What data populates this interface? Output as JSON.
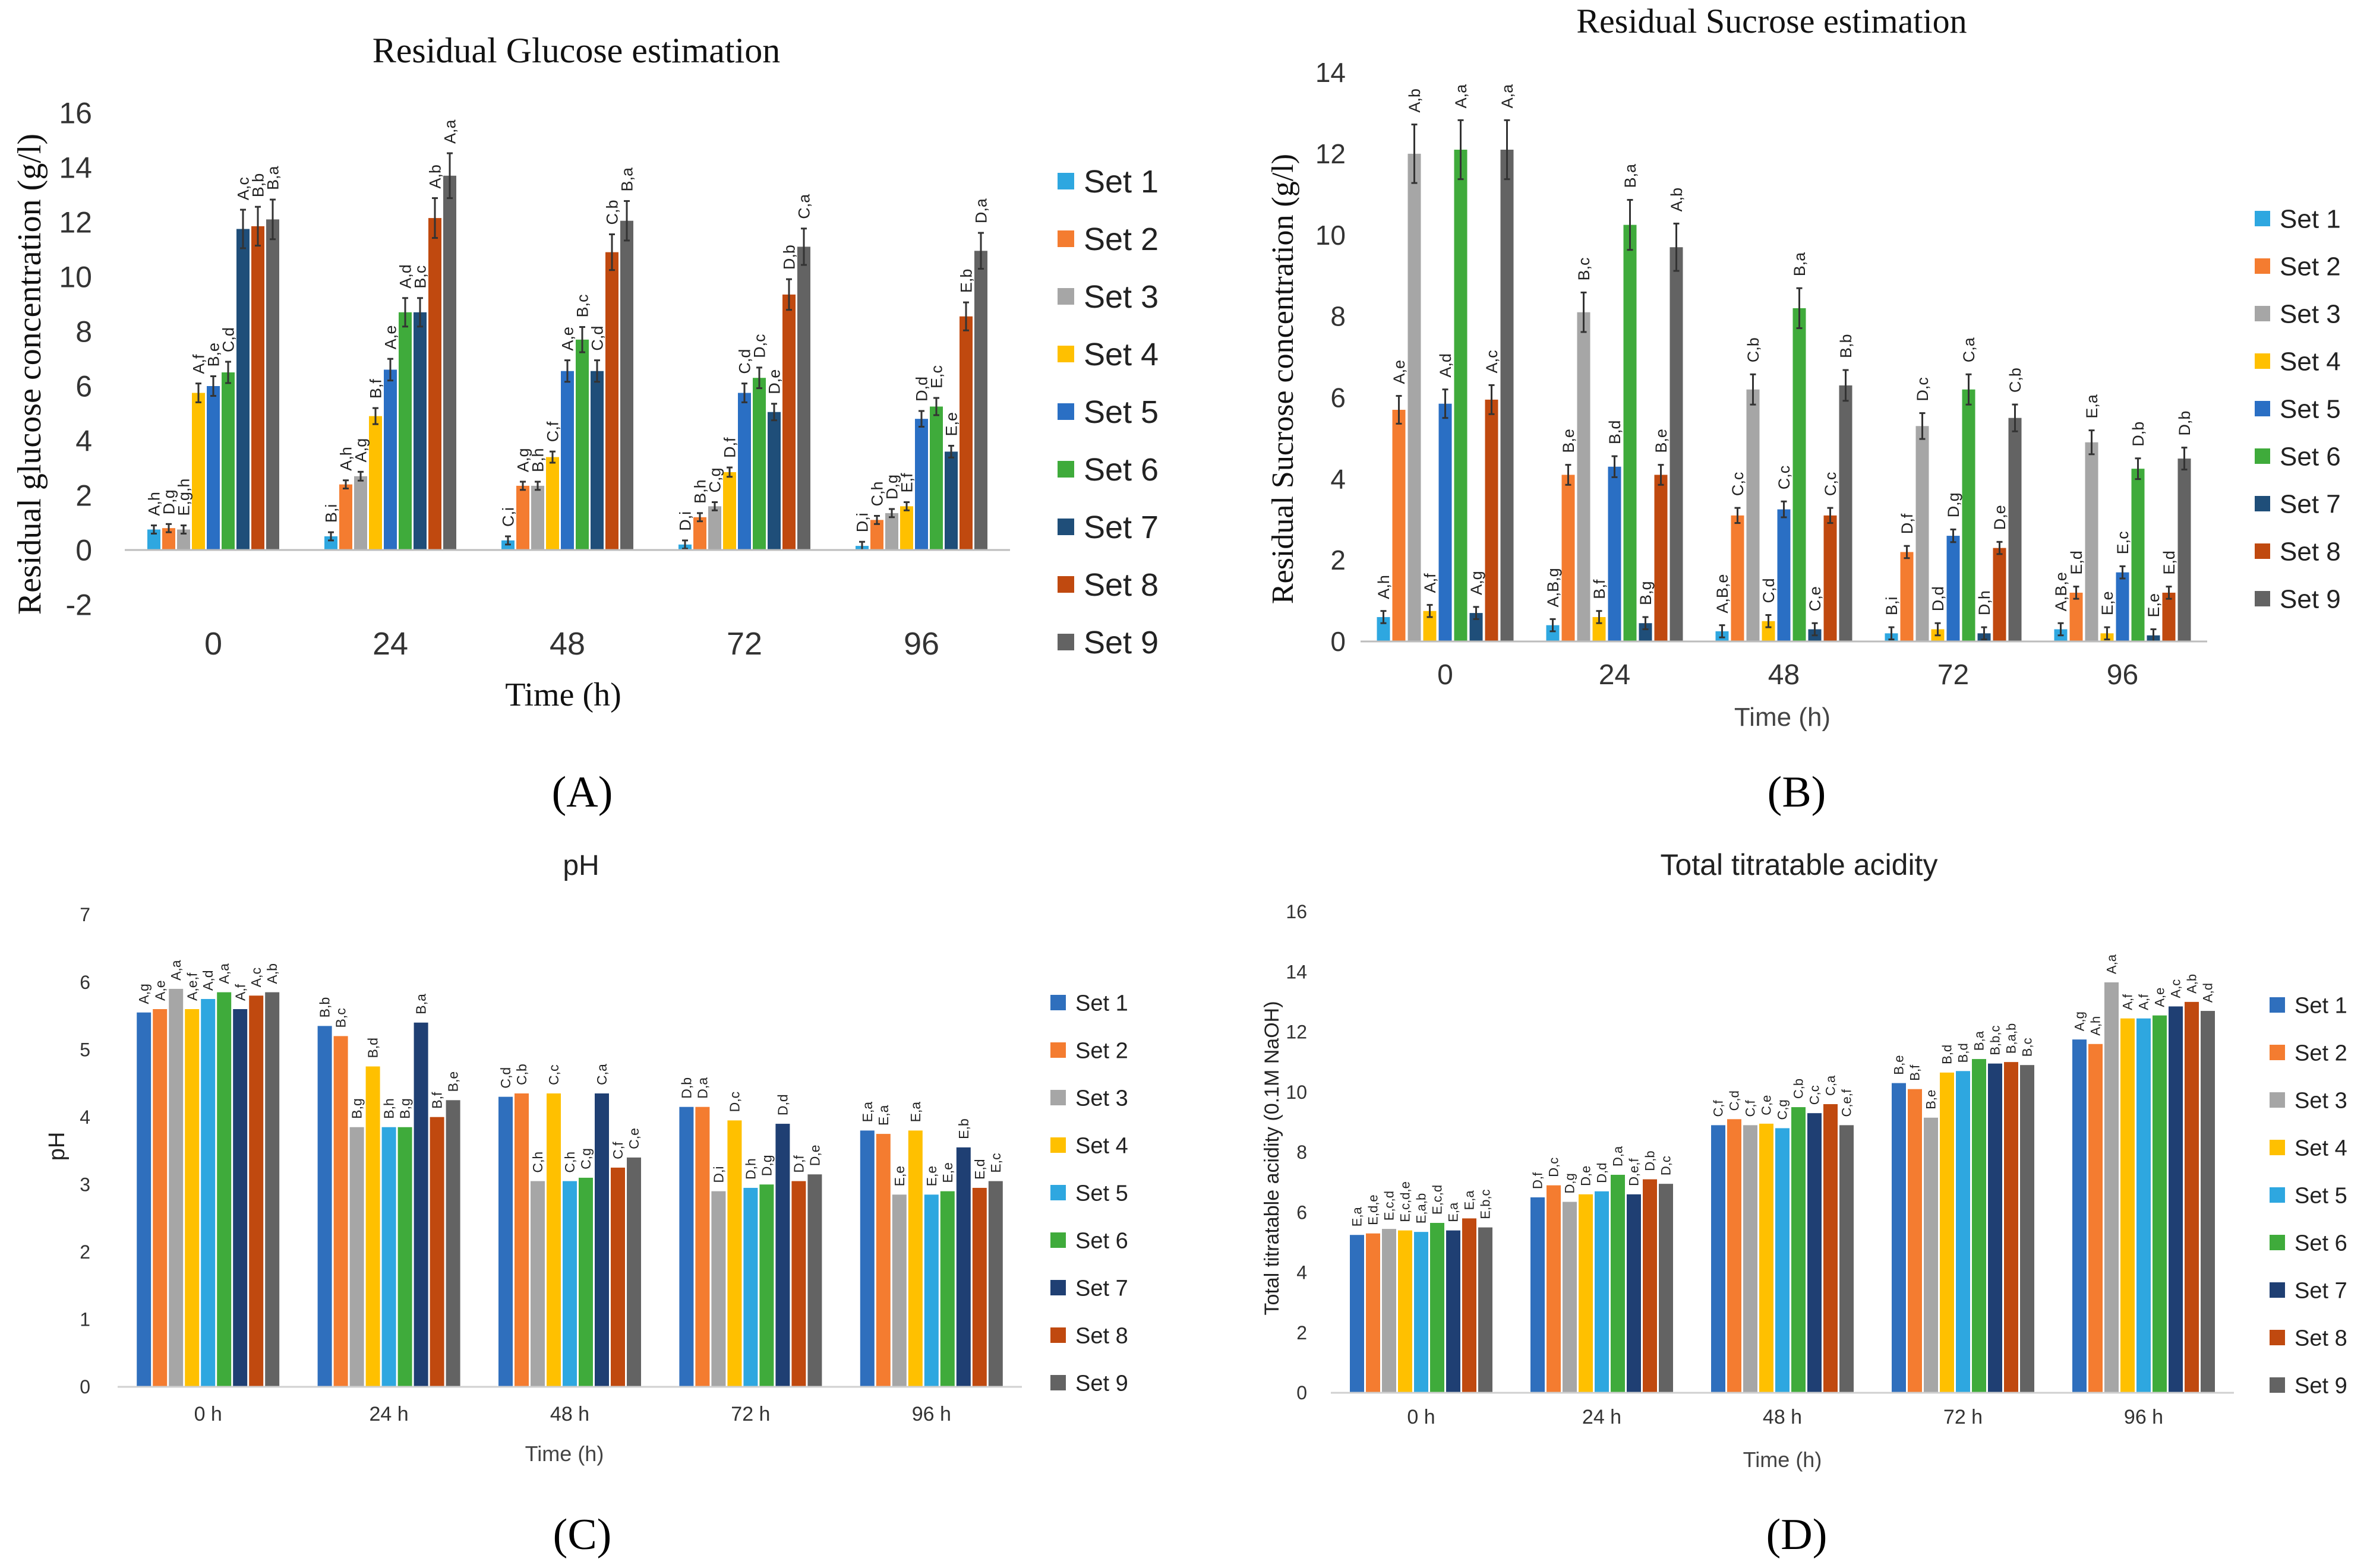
{
  "legend_sets": [
    "Set 1",
    "Set 2",
    "Set 3",
    "Set 4",
    "Set 5",
    "Set 6",
    "Set 7",
    "Set 8",
    "Set 9"
  ],
  "palettes": {
    "AB": [
      "#2ea7e0",
      "#f47c30",
      "#a6a6a6",
      "#ffc000",
      "#2a6fc4",
      "#3fab3b",
      "#1f4e79",
      "#c0490f",
      "#636363"
    ],
    "CD": [
      "#2f6fbd",
      "#f47c30",
      "#a6a6a6",
      "#ffc000",
      "#2ea7e0",
      "#3fab3b",
      "#1f3f73",
      "#c0490f",
      "#636363"
    ]
  },
  "chart_data": [
    {
      "id": "A",
      "panel_label": "(A)",
      "type": "bar",
      "title": "Residual Glucose estimation",
      "xlabel": "Time (h)",
      "ylabel": "Residual glucose concentration (g/l)",
      "categories": [
        "0",
        "24",
        "48",
        "72",
        "96"
      ],
      "ylim": [
        -2,
        16
      ],
      "yticks": [
        "-2",
        "0",
        "2",
        "4",
        "6",
        "8",
        "10",
        "12",
        "14",
        "16"
      ],
      "legend_position": "right",
      "series": [
        {
          "name": "Set 1",
          "values": [
            0.75,
            0.5,
            0.35,
            0.2,
            0.15
          ],
          "labels": [
            "A,h",
            "B,i",
            "C,i",
            "D,i",
            "D,i"
          ]
        },
        {
          "name": "Set 2",
          "values": [
            0.8,
            2.4,
            2.35,
            1.2,
            1.1
          ],
          "labels": [
            "D,g",
            "A,h",
            "A,g",
            "B,h",
            "C,h"
          ]
        },
        {
          "name": "Set 3",
          "values": [
            0.75,
            2.7,
            2.35,
            1.6,
            1.35
          ],
          "labels": [
            "E,g,h",
            "A,g",
            "B,h",
            "C,g",
            "D,g"
          ]
        },
        {
          "name": "Set 4",
          "values": [
            5.75,
            4.9,
            3.4,
            2.85,
            1.6
          ],
          "labels": [
            "A,f",
            "B,f",
            "C,f",
            "D,f",
            "E,f"
          ]
        },
        {
          "name": "Set 5",
          "values": [
            6.0,
            6.6,
            6.55,
            5.75,
            4.8
          ],
          "labels": [
            "B,e",
            "A,e",
            "A,e",
            "C,d",
            "D,d"
          ]
        },
        {
          "name": "Set 6",
          "values": [
            6.5,
            8.7,
            7.7,
            6.3,
            5.25
          ],
          "labels": [
            "C,d",
            "A,d",
            "B,c",
            "D,c",
            "E,c"
          ]
        },
        {
          "name": "Set 7",
          "values": [
            11.75,
            8.7,
            6.55,
            5.05,
            3.6
          ],
          "labels": [
            "A,c",
            "B,c",
            "C,d",
            "D,e",
            "E,e"
          ]
        },
        {
          "name": "Set 8",
          "values": [
            11.85,
            12.15,
            10.9,
            9.35,
            8.55
          ],
          "labels": [
            "B,b",
            "A,b",
            "C,b",
            "D,b",
            "E,b"
          ]
        },
        {
          "name": "Set 9",
          "values": [
            12.1,
            13.7,
            12.05,
            11.1,
            10.95
          ],
          "labels": [
            "B,a",
            "A,a",
            "B,a",
            "C,a",
            "D,a"
          ]
        }
      ]
    },
    {
      "id": "B",
      "panel_label": "(B)",
      "type": "bar",
      "title": "Residual Sucrose estimation",
      "xlabel": "Time (h)",
      "ylabel": "Residual Sucrose concentration (g/l)",
      "categories": [
        "0",
        "24",
        "48",
        "72",
        "96"
      ],
      "ylim": [
        0,
        14
      ],
      "yticks": [
        "0",
        "2",
        "4",
        "6",
        "8",
        "10",
        "12",
        "14"
      ],
      "legend_position": "right",
      "series": [
        {
          "name": "Set 1",
          "values": [
            0.6,
            0.4,
            0.25,
            0.2,
            0.3
          ],
          "labels": [
            "A,h",
            "A,B,g",
            "A,B,e",
            "B,i",
            "A,B,e"
          ]
        },
        {
          "name": "Set 2",
          "values": [
            5.7,
            4.1,
            3.1,
            2.2,
            1.2
          ],
          "labels": [
            "A,e",
            "B,e",
            "C,c",
            "D,f",
            "E,d"
          ]
        },
        {
          "name": "Set 3",
          "values": [
            12.0,
            8.1,
            6.2,
            5.3,
            4.9
          ],
          "labels": [
            "A,b",
            "B,c",
            "C,b",
            "D,c",
            "E,a"
          ]
        },
        {
          "name": "Set 4",
          "values": [
            0.75,
            0.6,
            0.5,
            0.3,
            0.2
          ],
          "labels": [
            "A,f",
            "B,f",
            "C,d",
            "D,d",
            "E,e"
          ]
        },
        {
          "name": "Set 5",
          "values": [
            5.85,
            4.3,
            3.25,
            2.6,
            1.7
          ],
          "labels": [
            "A,d",
            "B,d",
            "C,c",
            "D,g",
            "E,c"
          ]
        },
        {
          "name": "Set 6",
          "values": [
            12.1,
            10.25,
            8.2,
            6.2,
            4.25
          ],
          "labels": [
            "A,a",
            "B,a",
            "B,a",
            "C,a",
            "D,b"
          ]
        },
        {
          "name": "Set 7",
          "values": [
            0.7,
            0.45,
            0.3,
            0.2,
            0.15
          ],
          "labels": [
            "A,g",
            "B,g",
            "C,e",
            "D,h",
            "E,e"
          ]
        },
        {
          "name": "Set 8",
          "values": [
            5.95,
            4.1,
            3.1,
            2.3,
            1.2
          ],
          "labels": [
            "A,c",
            "B,e",
            "C,c",
            "D,e",
            "E,d"
          ]
        },
        {
          "name": "Set 9",
          "values": [
            12.1,
            9.7,
            6.3,
            5.5,
            4.5
          ],
          "labels": [
            "A,a",
            "A,b",
            "B,b",
            "C,b",
            "D,b"
          ]
        }
      ]
    },
    {
      "id": "C",
      "panel_label": "(C)",
      "type": "bar",
      "title": "pH",
      "xlabel": "Time (h)",
      "ylabel": "pH",
      "categories": [
        "0 h",
        "24 h",
        "48 h",
        "72 h",
        "96 h"
      ],
      "ylim": [
        0,
        7
      ],
      "yticks": [
        "0",
        "1",
        "2",
        "3",
        "4",
        "5",
        "6",
        "7"
      ],
      "legend_position": "right",
      "series": [
        {
          "name": "Set 1",
          "values": [
            5.55,
            5.35,
            4.3,
            4.15,
            3.8
          ],
          "labels": [
            "A,g",
            "B,b",
            "C,d",
            "D,b",
            "E,a"
          ]
        },
        {
          "name": "Set 2",
          "values": [
            5.6,
            5.2,
            4.35,
            4.15,
            3.75
          ],
          "labels": [
            "A,e",
            "B,c",
            "C,b",
            "D,a",
            "E,a"
          ]
        },
        {
          "name": "Set 3",
          "values": [
            5.9,
            3.85,
            3.05,
            2.9,
            2.85
          ],
          "labels": [
            "A,a",
            "B,g",
            "C,h",
            "D,i",
            "E,e"
          ]
        },
        {
          "name": "Set 4",
          "values": [
            5.6,
            4.75,
            4.35,
            3.95,
            3.8
          ],
          "labels": [
            "A,e,f",
            "B,d",
            "C,c",
            "D,c",
            "E,a"
          ]
        },
        {
          "name": "Set 5",
          "values": [
            5.75,
            3.85,
            3.05,
            2.95,
            2.85
          ],
          "labels": [
            "A,d",
            "B,h",
            "C,h",
            "D,h",
            "E,e"
          ]
        },
        {
          "name": "Set 6",
          "values": [
            5.85,
            3.85,
            3.1,
            3.0,
            2.9
          ],
          "labels": [
            "A,a",
            "B,g",
            "C,g",
            "D,g",
            "E,e"
          ]
        },
        {
          "name": "Set 7",
          "values": [
            5.6,
            5.4,
            4.35,
            3.9,
            3.55
          ],
          "labels": [
            "A,f",
            "B,a",
            "C,a",
            "D,d",
            "E,b"
          ]
        },
        {
          "name": "Set 8",
          "values": [
            5.8,
            4.0,
            3.25,
            3.05,
            2.95
          ],
          "labels": [
            "A,c",
            "B,f",
            "C,f",
            "D,f",
            "E,d"
          ]
        },
        {
          "name": "Set 9",
          "values": [
            5.85,
            4.25,
            3.4,
            3.15,
            3.05
          ],
          "labels": [
            "A,b",
            "B,e",
            "C,e",
            "D,e",
            "E,c"
          ]
        }
      ]
    },
    {
      "id": "D",
      "panel_label": "(D)",
      "type": "bar",
      "title": "Total titratable acidity",
      "xlabel": "Time (h)",
      "ylabel": "Total titratable acidity (0.1M NaOH)",
      "categories": [
        "0 h",
        "24 h",
        "48 h",
        "72 h",
        "96 h"
      ],
      "ylim": [
        0,
        16
      ],
      "yticks": [
        "0",
        "2",
        "4",
        "6",
        "8",
        "10",
        "12",
        "14",
        "16"
      ],
      "legend_position": "right",
      "series": [
        {
          "name": "Set 1",
          "values": [
            5.25,
            6.5,
            8.9,
            10.3,
            11.75
          ],
          "labels": [
            "E,a",
            "D,f",
            "C,f",
            "B,e",
            "A,g"
          ]
        },
        {
          "name": "Set 2",
          "values": [
            5.3,
            6.9,
            9.1,
            10.1,
            11.6
          ],
          "labels": [
            "E,d,e",
            "D,c",
            "C,d",
            "B,f",
            "A,h"
          ]
        },
        {
          "name": "Set 3",
          "values": [
            5.45,
            6.35,
            8.9,
            9.15,
            13.65
          ],
          "labels": [
            "E,c,d",
            "D,g",
            "C,f",
            "B,e",
            "A,a"
          ]
        },
        {
          "name": "Set 4",
          "values": [
            5.4,
            6.6,
            8.95,
            10.65,
            12.45
          ],
          "labels": [
            "E,c,d,e",
            "D,e",
            "C,e",
            "B,d",
            "A,f"
          ]
        },
        {
          "name": "Set 5",
          "values": [
            5.35,
            6.7,
            8.8,
            10.7,
            12.45
          ],
          "labels": [
            "E,a,b",
            "D,d",
            "C,g",
            "B,d",
            "A,f"
          ]
        },
        {
          "name": "Set 6",
          "values": [
            5.65,
            7.25,
            9.5,
            11.1,
            12.55
          ],
          "labels": [
            "E,c,d",
            "D,a",
            "C,b",
            "B,a",
            "A,e"
          ]
        },
        {
          "name": "Set 7",
          "values": [
            5.4,
            6.6,
            9.3,
            10.95,
            12.85
          ],
          "labels": [
            "E,a",
            "D,e,f",
            "C,c",
            "B,b,c",
            "A,c"
          ]
        },
        {
          "name": "Set 8",
          "values": [
            5.8,
            7.1,
            9.6,
            11.0,
            13.0
          ],
          "labels": [
            "E,a",
            "D,b",
            "C,a",
            "B,a,b",
            "A,b"
          ]
        },
        {
          "name": "Set 9",
          "values": [
            5.5,
            6.95,
            8.9,
            10.9,
            12.7
          ],
          "labels": [
            "E,b,c",
            "D,c",
            "C,e,f",
            "B,c",
            "A,d"
          ]
        }
      ]
    }
  ]
}
